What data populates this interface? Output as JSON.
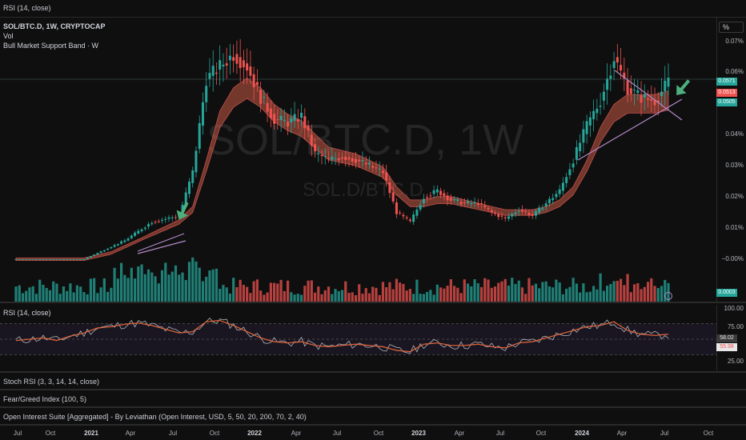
{
  "top_indicator_label": "RSI (14, close)",
  "main": {
    "legend_title": "SOL/BTC.D, 1W, CRYPTOCAP",
    "legend_vol": "Vol",
    "legend_band": "Bull Market Support Band · W",
    "watermark_big": "SOL/BTC.D, 1W",
    "watermark_small": "SOL.D/BTC.D",
    "percent_button": "%",
    "y_labels": [
      "0.07%",
      "0.06%",
      "0.04%",
      "0.03%",
      "0.02%",
      "0.01%",
      "−0.00%"
    ],
    "price_tags": [
      {
        "text": "0.0571",
        "color": "#26a69a"
      },
      {
        "text": "0.0513",
        "color": "#ef5350"
      },
      {
        "text": "0.0505",
        "color": "#26a69a"
      }
    ],
    "volume_tag": "0.0003"
  },
  "rsi": {
    "label": "RSI (14, close)",
    "y_labels": [
      "100.00",
      "75.00",
      "25.00"
    ],
    "value_tags": [
      {
        "text": "58.02",
        "color": "#e8e8e8",
        "bg": "#3a3a3a"
      },
      {
        "text": "55.98",
        "color": "#ef5350",
        "bg": "#e8e8e8"
      }
    ]
  },
  "stoch_label": "Stoch RSI (3, 3, 14, 14, close)",
  "feargreed_label": "Fear/Greed Index (100, 5)",
  "oi_label": "Open Interest Suite [Aggregated] - By Leviathan (Open Interest, USD, 5, 50, 20, 200, 70, 2, 40)",
  "x_labels": [
    {
      "text": "Jul",
      "year": false
    },
    {
      "text": "Oct",
      "year": false
    },
    {
      "text": "2021",
      "year": true
    },
    {
      "text": "Apr",
      "year": false
    },
    {
      "text": "Jul",
      "year": false
    },
    {
      "text": "Oct",
      "year": false
    },
    {
      "text": "2022",
      "year": true
    },
    {
      "text": "Apr",
      "year": false
    },
    {
      "text": "Jul",
      "year": false
    },
    {
      "text": "Oct",
      "year": false
    },
    {
      "text": "2023",
      "year": true
    },
    {
      "text": "Apr",
      "year": false
    },
    {
      "text": "Jul",
      "year": false
    },
    {
      "text": "Oct",
      "year": false
    },
    {
      "text": "2024",
      "year": true
    },
    {
      "text": "Apr",
      "year": false
    },
    {
      "text": "Jul",
      "year": false
    },
    {
      "text": "Oct",
      "year": false
    }
  ],
  "chart_data": {
    "type": "line",
    "title": "SOL/BTC.D, 1W, CRYPTOCAP",
    "xlabel": "",
    "ylabel": "",
    "x": [
      "2020-07",
      "2020-08",
      "2020-09",
      "2020-10",
      "2020-11",
      "2020-12",
      "2021-01",
      "2021-02",
      "2021-03",
      "2021-04",
      "2021-05",
      "2021-06",
      "2021-07",
      "2021-08",
      "2021-09",
      "2021-10",
      "2021-11",
      "2021-12",
      "2022-01",
      "2022-02",
      "2022-03",
      "2022-04",
      "2022-05",
      "2022-06",
      "2022-07",
      "2022-08",
      "2022-09",
      "2022-10",
      "2022-11",
      "2022-12",
      "2023-01",
      "2023-02",
      "2023-03",
      "2023-04",
      "2023-05",
      "2023-06",
      "2023-07",
      "2023-08",
      "2023-09",
      "2023-10",
      "2023-11",
      "2023-12",
      "2024-01",
      "2024-02",
      "2024-03",
      "2024-04",
      "2024-05",
      "2024-06",
      "2024-07"
    ],
    "series": [
      {
        "name": "SOL/BTC.D",
        "values": [
          0.0,
          0.0,
          0.0,
          0.0,
          0.0,
          0.0,
          0.002,
          0.004,
          0.006,
          0.009,
          0.012,
          0.013,
          0.014,
          0.028,
          0.058,
          0.062,
          0.066,
          0.062,
          0.052,
          0.045,
          0.044,
          0.046,
          0.034,
          0.032,
          0.033,
          0.032,
          0.03,
          0.028,
          0.015,
          0.012,
          0.02,
          0.022,
          0.019,
          0.018,
          0.018,
          0.015,
          0.013,
          0.016,
          0.014,
          0.018,
          0.022,
          0.032,
          0.043,
          0.051,
          0.065,
          0.055,
          0.052,
          0.051,
          0.057
        ]
      },
      {
        "name": "Bull Market Support Band · W",
        "values": [
          0.0,
          0.0,
          0.0,
          0.0,
          0.0,
          0.0,
          0.001,
          0.002,
          0.004,
          0.006,
          0.008,
          0.01,
          0.012,
          0.016,
          0.03,
          0.045,
          0.052,
          0.055,
          0.052,
          0.047,
          0.044,
          0.042,
          0.038,
          0.034,
          0.033,
          0.032,
          0.03,
          0.028,
          0.022,
          0.018,
          0.018,
          0.019,
          0.019,
          0.018,
          0.017,
          0.016,
          0.015,
          0.015,
          0.015,
          0.016,
          0.018,
          0.022,
          0.03,
          0.04,
          0.047,
          0.05,
          0.05,
          0.05,
          0.051
        ]
      }
    ],
    "rsi_values": [
      48,
      50,
      52,
      48,
      55,
      60,
      68,
      70,
      74,
      76,
      72,
      66,
      60,
      62,
      78,
      80,
      72,
      62,
      52,
      46,
      44,
      46,
      40,
      38,
      40,
      42,
      40,
      38,
      32,
      30,
      42,
      44,
      40,
      40,
      42,
      38,
      36,
      44,
      46,
      52,
      58,
      64,
      70,
      72,
      78,
      64,
      58,
      56,
      58
    ],
    "ylim": [
      -0.0,
      0.07
    ],
    "grid": false,
    "legend": "top-left"
  }
}
